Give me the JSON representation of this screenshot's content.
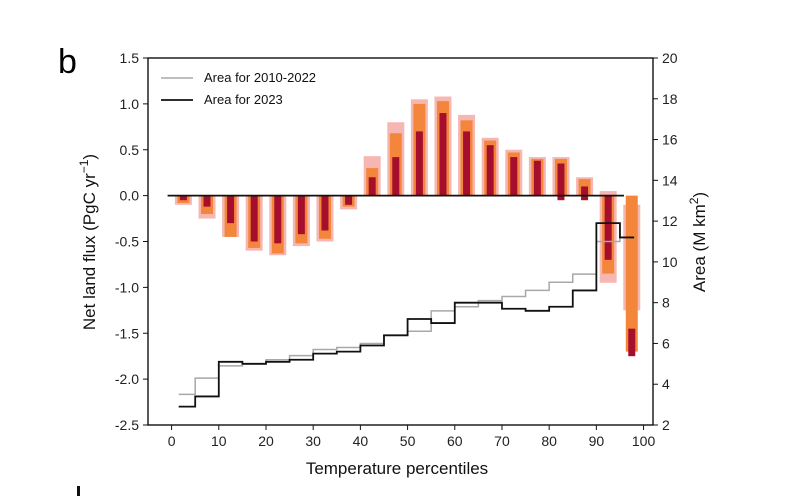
{
  "panel_label": "b",
  "chart_data": {
    "type": "bar",
    "xlabel": "Temperature percentiles",
    "ylabel": "Net land flux (PgC yr",
    "ylabel_sup": "−1",
    "ylabel_close": ")",
    "y2label": "Area (M km",
    "y2label_sup": "2",
    "y2label_close": ")",
    "xlim": [
      -5,
      102
    ],
    "ylim": [
      -2.5,
      1.5
    ],
    "y2lim": [
      2,
      20
    ],
    "xticks": [
      "0",
      "10",
      "20",
      "30",
      "40",
      "50",
      "60",
      "70",
      "80",
      "90",
      "100"
    ],
    "yticks": [
      "1.5",
      "1.0",
      "0.5",
      "0.0",
      "-0.5",
      "-1.0",
      "-1.5",
      "-2.0",
      "-2.5"
    ],
    "y2ticks": [
      "20",
      "18",
      "16",
      "14",
      "12",
      "10",
      "8",
      "6",
      "4",
      "2"
    ],
    "colors": {
      "outer": "#f6b7b2",
      "mid": "#f3863a",
      "inner": "#a50f2d",
      "grey_line": "#a8a8a8",
      "black_line": "#111111"
    },
    "bars": {
      "x": [
        2.5,
        7.5,
        12.5,
        17.5,
        22.5,
        27.5,
        32.5,
        37.5,
        42.5,
        47.5,
        52.5,
        57.5,
        62.5,
        67.5,
        72.5,
        77.5,
        82.5,
        87.5,
        92.5,
        97.5
      ],
      "outer_range": [
        [
          -0.1,
          0
        ],
        [
          -0.25,
          0
        ],
        [
          -0.45,
          0
        ],
        [
          -0.6,
          0
        ],
        [
          -0.65,
          0
        ],
        [
          -0.55,
          0
        ],
        [
          -0.5,
          0
        ],
        [
          -0.15,
          0
        ],
        [
          0,
          0.43
        ],
        [
          0,
          0.8
        ],
        [
          0,
          1.05
        ],
        [
          0,
          1.08
        ],
        [
          0,
          0.88
        ],
        [
          0,
          0.63
        ],
        [
          0,
          0.5
        ],
        [
          0,
          0.42
        ],
        [
          0,
          0.42
        ],
        [
          0,
          0.2
        ],
        [
          -0.95,
          0.05
        ],
        [
          -1.25,
          -0.1
        ]
      ],
      "mid_range": [
        [
          -0.08,
          0
        ],
        [
          -0.2,
          0
        ],
        [
          -0.45,
          0
        ],
        [
          -0.57,
          0
        ],
        [
          -0.63,
          0
        ],
        [
          -0.52,
          0
        ],
        [
          -0.47,
          0
        ],
        [
          -0.12,
          0
        ],
        [
          0,
          0.3
        ],
        [
          0,
          0.68
        ],
        [
          0,
          1.0
        ],
        [
          0,
          1.03
        ],
        [
          0,
          0.82
        ],
        [
          0,
          0.6
        ],
        [
          0,
          0.47
        ],
        [
          0,
          0.4
        ],
        [
          0,
          0.4
        ],
        [
          0,
          0.18
        ],
        [
          -0.85,
          0
        ],
        [
          -1.7,
          0
        ]
      ],
      "inner_range": [
        [
          -0.05,
          0
        ],
        [
          -0.12,
          0
        ],
        [
          -0.3,
          0
        ],
        [
          -0.5,
          0
        ],
        [
          -0.52,
          0
        ],
        [
          -0.42,
          0
        ],
        [
          -0.38,
          0
        ],
        [
          -0.1,
          0
        ],
        [
          0,
          0.2
        ],
        [
          0,
          0.42
        ],
        [
          0,
          0.7
        ],
        [
          0,
          0.9
        ],
        [
          0,
          0.7
        ],
        [
          0,
          0.55
        ],
        [
          0,
          0.42
        ],
        [
          0,
          0.38
        ],
        [
          -0.05,
          0.35
        ],
        [
          -0.05,
          0.1
        ],
        [
          -0.7,
          0
        ],
        [
          -1.75,
          -1.45
        ]
      ]
    },
    "series": [
      {
        "name": "Area for 2010-2022",
        "x": [
          1.5,
          5,
          10,
          15,
          20,
          25,
          30,
          35,
          40,
          45,
          50,
          55,
          60,
          65,
          70,
          75,
          80,
          85,
          90,
          95,
          98
        ],
        "y": [
          3.5,
          4.3,
          4.9,
          5.0,
          5.2,
          5.4,
          5.7,
          5.8,
          6.0,
          6.4,
          6.6,
          7.6,
          7.8,
          8.1,
          8.3,
          8.6,
          9.0,
          9.4,
          11.0,
          11.2,
          11.2
        ]
      },
      {
        "name": "Area for 2023",
        "x": [
          1.5,
          5,
          10,
          15,
          20,
          25,
          30,
          35,
          40,
          45,
          50,
          55,
          60,
          65,
          70,
          75,
          80,
          85,
          90,
          95,
          98
        ],
        "y": [
          2.9,
          3.4,
          5.1,
          5.0,
          5.1,
          5.2,
          5.5,
          5.6,
          5.9,
          6.4,
          7.2,
          7.0,
          8.0,
          8.0,
          7.7,
          7.6,
          7.8,
          8.6,
          11.9,
          11.2,
          11.2
        ]
      }
    ],
    "legend_position": "top-left",
    "grid": false
  }
}
